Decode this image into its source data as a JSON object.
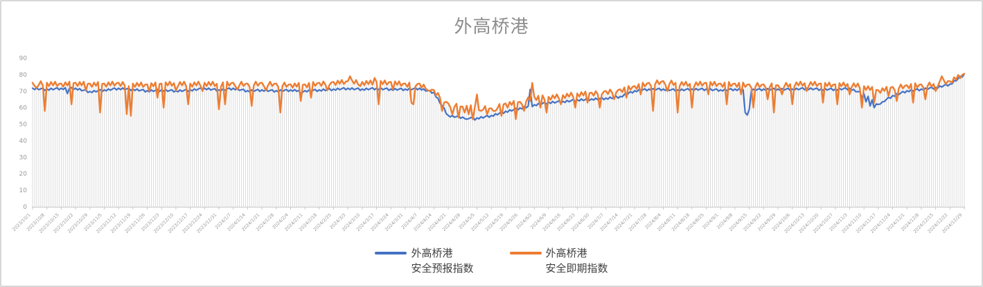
{
  "chart_data": {
    "type": "line",
    "title": "外高桥港",
    "title_color": "#8d8d8d",
    "x_start": "2023/10/1",
    "x_end": "2024/12/29",
    "x_frequency": "daily",
    "x_tick_interval_days": 7,
    "x_tick_labels": [
      "2023/10/1",
      "2023/10/8",
      "2023/10/15",
      "2023/10/22",
      "2023/10/29",
      "2023/11/5",
      "2023/11/12",
      "2023/11/19",
      "2023/11/26",
      "2023/12/3",
      "2023/12/10",
      "2023/12/17",
      "2023/12/24",
      "2023/12/31",
      "2024/1/7",
      "2024/1/14",
      "2024/1/21",
      "2024/1/28",
      "2024/2/4",
      "2024/2/11",
      "2024/2/18",
      "2024/2/25",
      "2024/3/3",
      "2024/3/10",
      "2024/3/17",
      "2024/3/24",
      "2024/3/31",
      "2024/4/7",
      "2024/4/14",
      "2024/4/21",
      "2024/4/28",
      "2024/5/5",
      "2024/5/12",
      "2024/5/19",
      "2024/5/26",
      "2024/6/2",
      "2024/6/9",
      "2024/6/16",
      "2024/6/23",
      "2024/6/30",
      "2024/7/7",
      "2024/7/14",
      "2024/7/21",
      "2024/7/28",
      "2024/8/4",
      "2024/8/11",
      "2024/8/18",
      "2024/8/25",
      "2024/9/1",
      "2024/9/8",
      "2024/9/15",
      "2024/9/22",
      "2024/9/29",
      "2024/10/6",
      "2024/10/13",
      "2024/10/20",
      "2024/10/27",
      "2024/11/3",
      "2024/11/10",
      "2024/11/17",
      "2024/11/24",
      "2024/12/1",
      "2024/12/8",
      "2024/12/15",
      "2024/12/22",
      "2024/12/29"
    ],
    "ylim": [
      0,
      90
    ],
    "y_ticks": [
      0,
      10,
      20,
      30,
      40,
      50,
      60,
      70,
      80,
      90
    ],
    "grid": "none",
    "drop_lines": true,
    "drop_line_color": "#dbdbdb",
    "axis_color": "#c6c6c6",
    "tick_label_color": "#9a9a9a",
    "legend_position": "bottom",
    "series": [
      {
        "name": "外高桥港安全预报指数",
        "color": "#4472C4",
        "weekly_values": [
          71.5,
          71,
          71.5,
          71.5,
          69.5,
          70.5,
          71.5,
          71,
          70,
          70.5,
          70,
          70.5,
          71.5,
          70.5,
          71.5,
          70,
          70.5,
          70,
          70.5,
          70,
          70.5,
          71,
          71.5,
          71,
          71.5,
          71,
          71,
          71.5,
          69,
          55,
          54,
          53.5,
          55,
          57.5,
          59.5,
          61.5,
          63,
          63.5,
          64.5,
          65,
          65.5,
          66.5,
          70,
          71,
          71,
          70.5,
          71,
          71,
          70.5,
          71,
          70.5,
          71,
          71,
          71,
          71.5,
          71,
          71,
          71.5,
          68,
          62,
          67,
          70,
          71,
          72,
          74,
          80
        ],
        "jitter": [
          0.3,
          -0.5,
          0.6,
          -0.4,
          0.2,
          0.7,
          -0.6
        ],
        "daily_overrides": {
          "17": 68.5,
          "131": 68.5,
          "212": 53,
          "216": 52.5,
          "243": 71,
          "348": 57,
          "349": 55.5,
          "350": 59,
          "405": 66,
          "407": 63.5,
          "409": 61,
          "411": 60,
          "413": 62,
          "415": 63.5,
          "455": 80.5
        }
      },
      {
        "name": "外高桥港安全即期指数",
        "color": "#ED7D31",
        "weekly_values": [
          74.5,
          74.5,
          74,
          74.5,
          74,
          74,
          74.5,
          74,
          73.5,
          74,
          74.5,
          74,
          74.5,
          74,
          74.5,
          74,
          74.5,
          74,
          73.5,
          73.5,
          74.5,
          75,
          75.5,
          75,
          75,
          75,
          74,
          74,
          70,
          62,
          60,
          60,
          59,
          62,
          63,
          66,
          66,
          67,
          68,
          68.5,
          69.5,
          70.5,
          72.5,
          74.5,
          75.5,
          74.5,
          74,
          74.5,
          74,
          74,
          73.5,
          73.5,
          73,
          74,
          74.5,
          74,
          73.5,
          74,
          72.5,
          70,
          72,
          73,
          73.5,
          74,
          76,
          80
        ],
        "jitter": [
          0.6,
          -1.4,
          1.2,
          -0.8,
          1.5,
          -1.1,
          0.4
        ],
        "daily_overrides": {
          "2": 72,
          "6": 58,
          "19": 62,
          "26": 70.5,
          "33": 57,
          "46": 56,
          "48": 55,
          "57": 70,
          "61": 66,
          "64": 60,
          "70": 70.5,
          "76": 62,
          "83": 70,
          "91": 59,
          "94": 62,
          "100": 71,
          "107": 61,
          "114": 70.5,
          "121": 57,
          "131": 64,
          "136": 66,
          "144": 70.5,
          "155": 79,
          "160": 73,
          "167": 78,
          "169": 62,
          "176": 71,
          "185": 63,
          "186": 62,
          "193": 70.5,
          "200": 58,
          "205": 56,
          "208": 54,
          "211": 57,
          "213": 56,
          "215": 53,
          "217": 68,
          "219": 58,
          "222": 56,
          "226": 58,
          "229": 55,
          "232": 60,
          "236": 53,
          "240": 58,
          "244": 75,
          "248": 60,
          "251": 57,
          "258": 62,
          "265": 60,
          "271": 63,
          "277": 60,
          "284": 65,
          "290": 66,
          "297": 68,
          "303": 58,
          "310": 70,
          "315": 57,
          "322": 60,
          "330": 68,
          "339": 62,
          "346": 68,
          "352": 60,
          "359": 65,
          "362": 57,
          "366": 68,
          "371": 62,
          "378": 70,
          "386": 63,
          "393": 62,
          "399": 68,
          "405": 60,
          "411": 63,
          "418": 67,
          "422": 64,
          "430": 63,
          "436": 65,
          "441": 70,
          "444": 79,
          "448": 76
        }
      }
    ]
  },
  "legend": {
    "items": [
      {
        "line1": "外高桥港",
        "line2": "安全预报指数",
        "color": "#4472C4"
      },
      {
        "line1": "外高桥港",
        "line2": "安全即期指数",
        "color": "#ED7D31"
      }
    ]
  }
}
